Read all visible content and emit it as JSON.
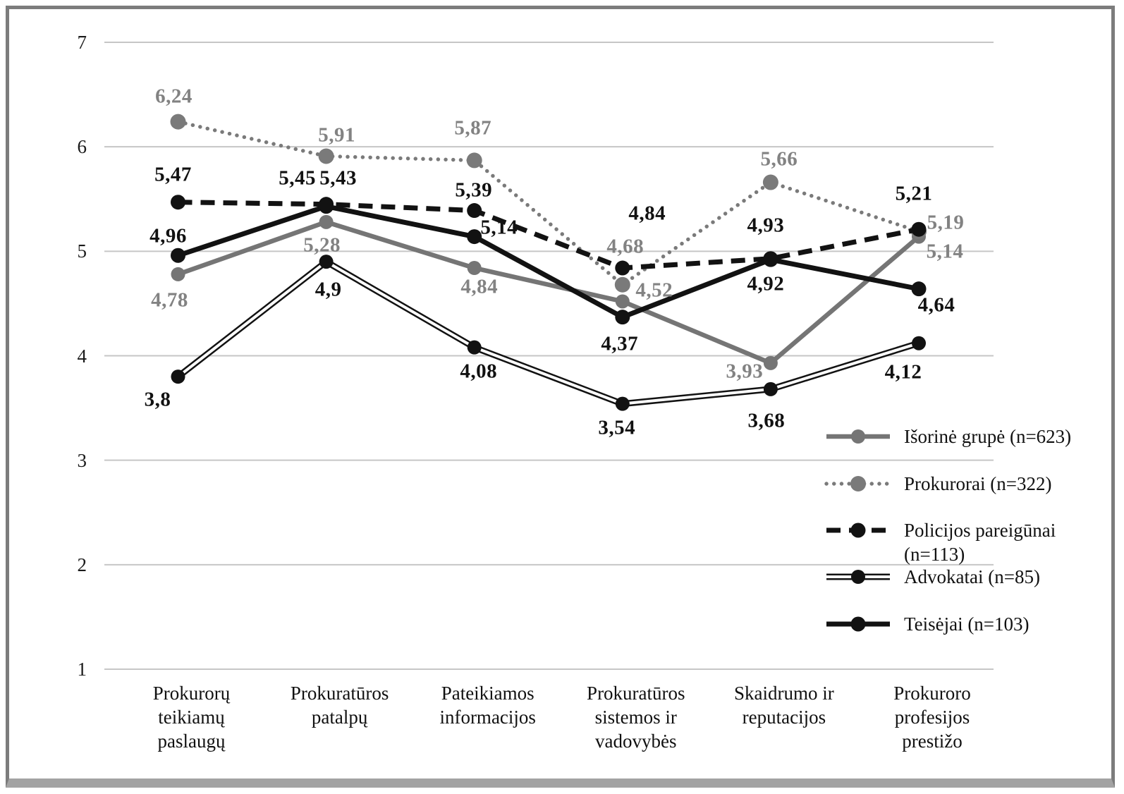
{
  "figure": {
    "background": "#ffffff",
    "frame_border_color": "#7c7c7c",
    "frame_bottom_color": "#a3a3a3",
    "decimal_separator": ","
  },
  "chart_data": {
    "type": "line",
    "title": "",
    "xlabel": "",
    "ylabel": "",
    "grid": true,
    "gridline_color": "#c6c6c6",
    "y_axis": {
      "min": 1,
      "max": 7,
      "tick_labels": [
        "7",
        "6",
        "5",
        "4",
        "3",
        "2",
        "1"
      ]
    },
    "categories": [
      "Prokurorų teikiamų paslaugų",
      "Prokuratūros patalpų",
      "Pateikiamos informacijos",
      "Prokuratūros sistemos ir vadovybės",
      "Skaidrumo ir reputacijos",
      "Prokuroro profesijos prestižo"
    ],
    "category_display_lines": [
      [
        "Prokurorų",
        "teikiamų",
        "paslaugų"
      ],
      [
        "Prokuratūros",
        "patalpų"
      ],
      [
        "Pateikiamos",
        "informacijos"
      ],
      [
        "Prokuratūros",
        "sistemos ir",
        "vadovybės"
      ],
      [
        "Skaidrumo ir",
        "reputacijos"
      ],
      [
        "Prokuroro",
        "profesijos",
        "prestižo"
      ]
    ],
    "series": [
      {
        "name": "Išorinė grupė (n=623)",
        "style": "solid",
        "color": "#757575",
        "label_color": "#828282",
        "line_width": 6.5,
        "marker_radius": 10,
        "values": [
          4.78,
          5.28,
          4.84,
          4.52,
          3.93,
          5.14
        ],
        "labels": [
          "4,78",
          "5,28",
          "4,84",
          "4,52",
          "3,93",
          "5,14"
        ],
        "label_offsets": [
          [
            -12,
            37
          ],
          [
            -6,
            33
          ],
          [
            7,
            27
          ],
          [
            45,
            -15
          ],
          [
            -37,
            12
          ],
          [
            37,
            21
          ]
        ]
      },
      {
        "name": "Prokurorai (n=322)",
        "style": "dotted",
        "color": "#7a7a7a",
        "label_color": "#828282",
        "line_width": 5.4,
        "marker_radius": 11,
        "values": [
          6.24,
          5.91,
          5.87,
          4.68,
          5.66,
          5.19
        ],
        "labels": [
          "6,24",
          "5,91",
          "5,87",
          "4,68",
          "5,66",
          "5,19"
        ],
        "label_offsets": [
          [
            -6,
            -36
          ],
          [
            15,
            -30
          ],
          [
            -2,
            -45
          ],
          [
            4,
            -54
          ],
          [
            12,
            -33
          ],
          [
            38,
            -12
          ]
        ]
      },
      {
        "name": "Policijos pareigūnai (n=113)",
        "style": "dashed",
        "color": "#121212",
        "label_color": "#111111",
        "line_width": 7,
        "marker_radius": 10.5,
        "values": [
          5.47,
          5.45,
          5.39,
          4.84,
          4.93,
          5.21
        ],
        "labels": [
          "5,47",
          "5,45",
          "5,39",
          "4,84",
          "4,93",
          "5,21"
        ],
        "label_offsets": [
          [
            -7,
            -39
          ],
          [
            -41,
            -37
          ],
          [
            -1,
            -29
          ],
          [
            35,
            -77
          ],
          [
            -7,
            -47
          ],
          [
            -7,
            -50
          ]
        ]
      },
      {
        "name": "Advokatai (n=85)",
        "style": "double",
        "color": "#121212",
        "label_color": "#111111",
        "line_width": 9,
        "marker_radius": 10,
        "values": [
          3.8,
          4.9,
          4.08,
          3.54,
          3.68,
          4.12
        ],
        "labels": [
          "3,8",
          "4,9",
          "4,08",
          "3,54",
          "3,68",
          "4,12"
        ],
        "label_offsets": [
          [
            -29,
            33
          ],
          [
            3,
            40
          ],
          [
            6,
            34
          ],
          [
            -8,
            34
          ],
          [
            -6,
            45
          ],
          [
            -22,
            41
          ]
        ]
      },
      {
        "name": "Teisėjai (n=103)",
        "style": "solid",
        "color": "#121212",
        "label_color": "#111111",
        "line_width": 7,
        "marker_radius": 10.5,
        "values": [
          4.96,
          5.43,
          5.14,
          4.37,
          4.92,
          4.64
        ],
        "labels": [
          "4,96",
          "5,43",
          "5,14",
          "4,37",
          "4,92",
          "4,64"
        ],
        "label_offsets": [
          [
            -14,
            -27
          ],
          [
            17,
            -40
          ],
          [
            35,
            -13
          ],
          [
            -4,
            38
          ],
          [
            -7,
            35
          ],
          [
            25,
            23
          ]
        ]
      }
    ],
    "legend": {
      "position": "middle-right",
      "entries": [
        {
          "label_lines": [
            "Išorinė grupė (n=623)"
          ]
        },
        {
          "label_lines": [
            "Prokurorai (n=322)"
          ]
        },
        {
          "label_lines": [
            "Policijos pareigūnai",
            "(n=113)"
          ]
        },
        {
          "label_lines": [
            "Advokatai (n=85)"
          ]
        },
        {
          "label_lines": [
            "Teisėjai (n=103)"
          ]
        }
      ]
    }
  }
}
